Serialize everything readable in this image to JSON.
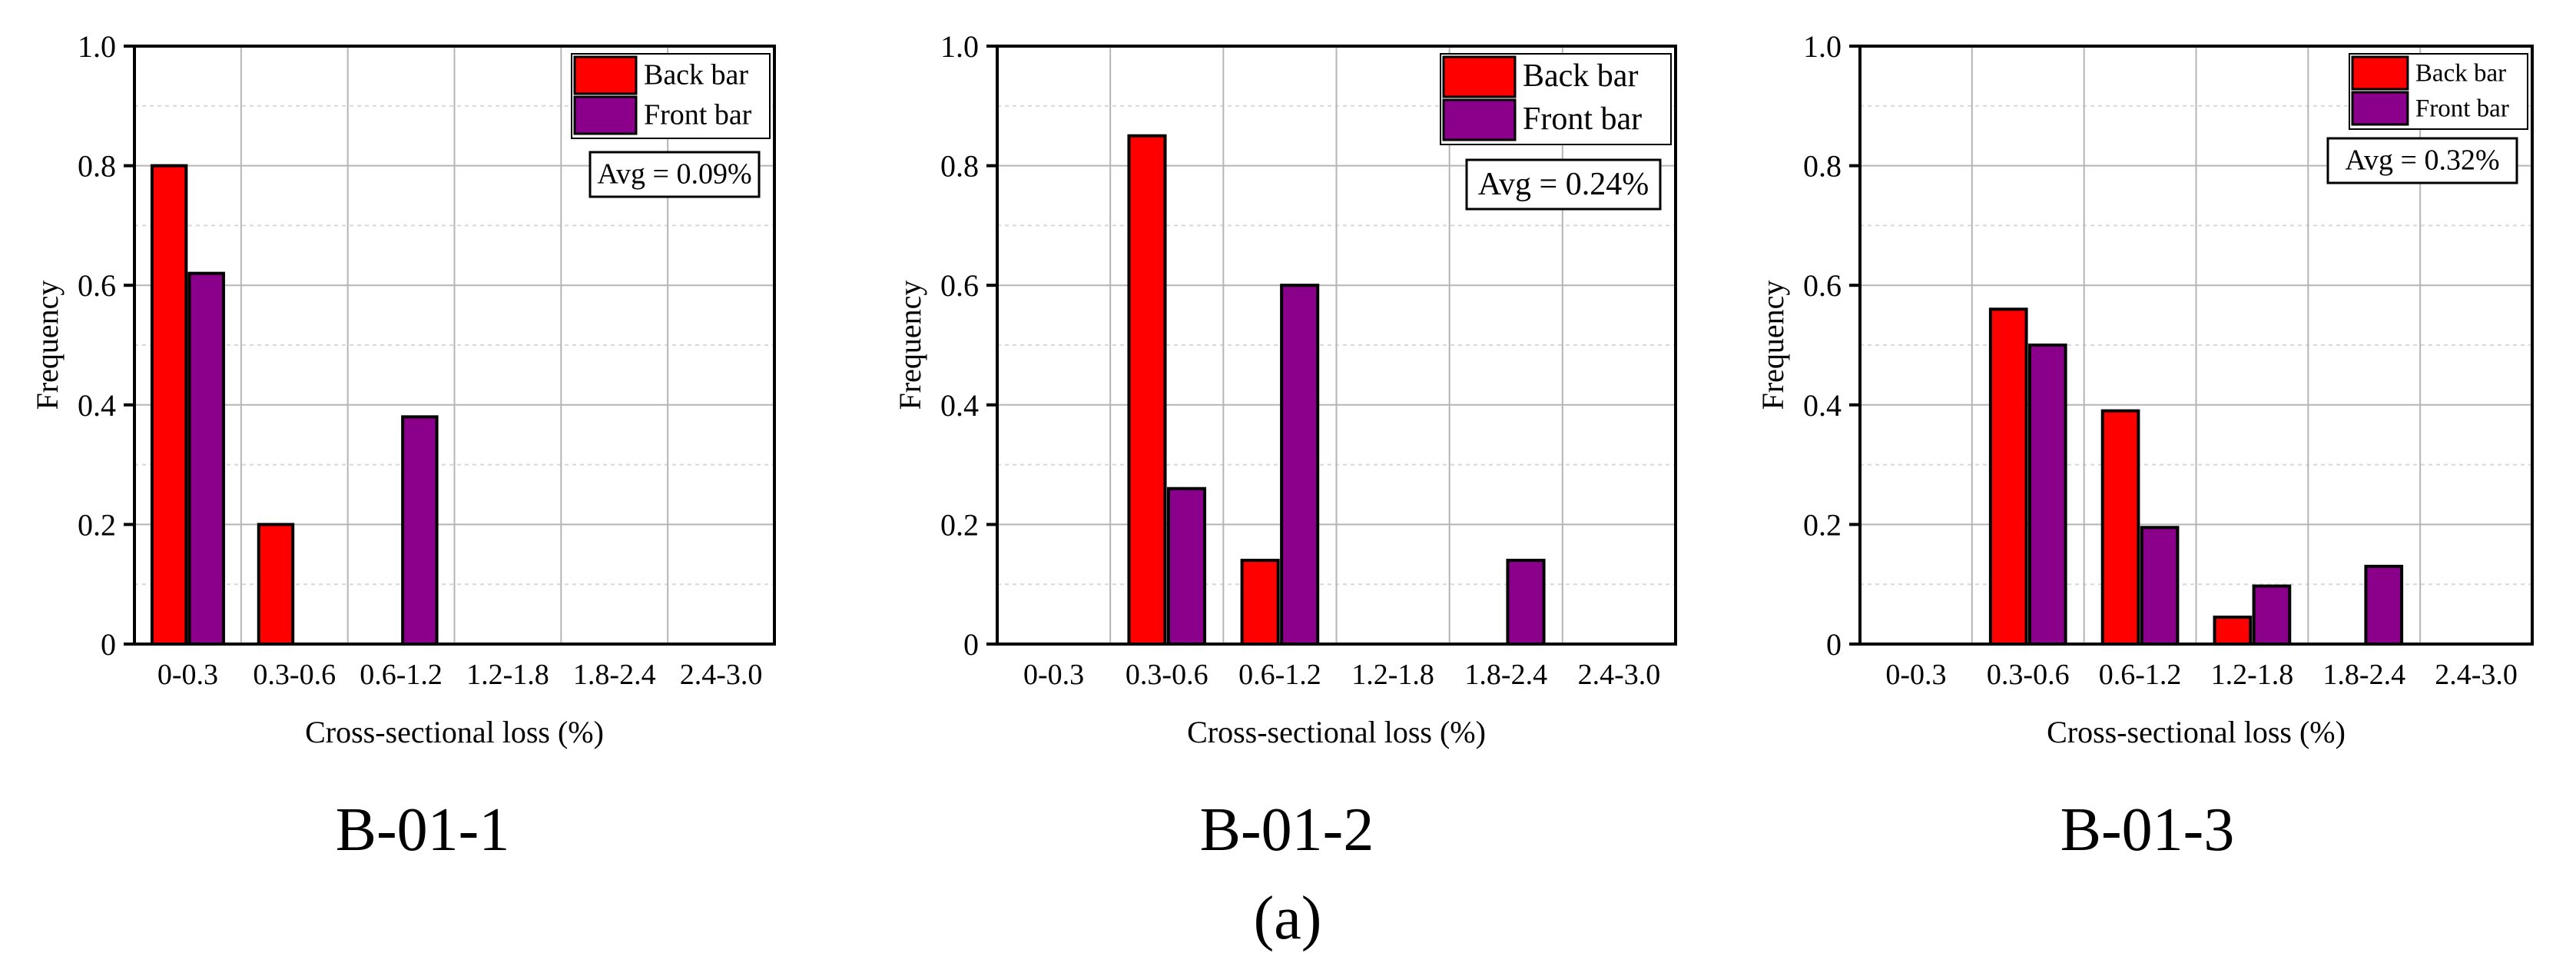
{
  "figure_label": "(a)",
  "colors": {
    "back": "#ff0000",
    "front": "#8b008b",
    "grid": "#b5b5b5",
    "axis": "#000000"
  },
  "chart_data": [
    {
      "type": "bar",
      "panel_label": "B-01-1",
      "categories": [
        "0-0.3",
        "0.3-0.6",
        "0.6-1.2",
        "1.2-1.8",
        "1.8-2.4",
        "2.4-3.0"
      ],
      "series": [
        {
          "name": "Back bar",
          "values": [
            0.8,
            0.2,
            0,
            0,
            0,
            0
          ]
        },
        {
          "name": "Front bar",
          "values": [
            0.62,
            0,
            0.38,
            0,
            0,
            0
          ]
        }
      ],
      "xlabel": "Cross-sectional loss (%)",
      "ylabel": "Frequency",
      "ylim": [
        0,
        1.0
      ],
      "yticks": [
        "0",
        "0.2",
        "0.4",
        "0.6",
        "0.8",
        "1.0"
      ],
      "annotation": "Avg = 0.09%",
      "legend": "top-right",
      "grid": true
    },
    {
      "type": "bar",
      "panel_label": "B-01-2",
      "categories": [
        "0-0.3",
        "0.3-0.6",
        "0.6-1.2",
        "1.2-1.8",
        "1.8-2.4",
        "2.4-3.0"
      ],
      "series": [
        {
          "name": "Back bar",
          "values": [
            0,
            0.85,
            0.14,
            0,
            0,
            0
          ]
        },
        {
          "name": "Front bar",
          "values": [
            0,
            0.26,
            0.6,
            0,
            0.14,
            0
          ]
        }
      ],
      "xlabel": "Cross-sectional loss (%)",
      "ylabel": "Frequency",
      "ylim": [
        0,
        1.0
      ],
      "yticks": [
        "0",
        "0.2",
        "0.4",
        "0.6",
        "0.8",
        "1.0"
      ],
      "annotation": "Avg = 0.24%",
      "legend": "top-right",
      "grid": true
    },
    {
      "type": "bar",
      "panel_label": "B-01-3",
      "categories": [
        "0-0.3",
        "0.3-0.6",
        "0.6-1.2",
        "1.2-1.8",
        "1.8-2.4",
        "2.4-3.0"
      ],
      "series": [
        {
          "name": "Back bar",
          "values": [
            0,
            0.56,
            0.39,
            0.045,
            0,
            0
          ]
        },
        {
          "name": "Front bar",
          "values": [
            0,
            0.5,
            0.195,
            0.097,
            0.13,
            0
          ]
        }
      ],
      "xlabel": "Cross-sectional loss (%)",
      "ylabel": "Frequency",
      "ylim": [
        0,
        1.0
      ],
      "yticks": [
        "0",
        "0.2",
        "0.4",
        "0.6",
        "0.8",
        "1.0"
      ],
      "annotation": "Avg = 0.32%",
      "legend": "top-right",
      "grid": true
    }
  ]
}
